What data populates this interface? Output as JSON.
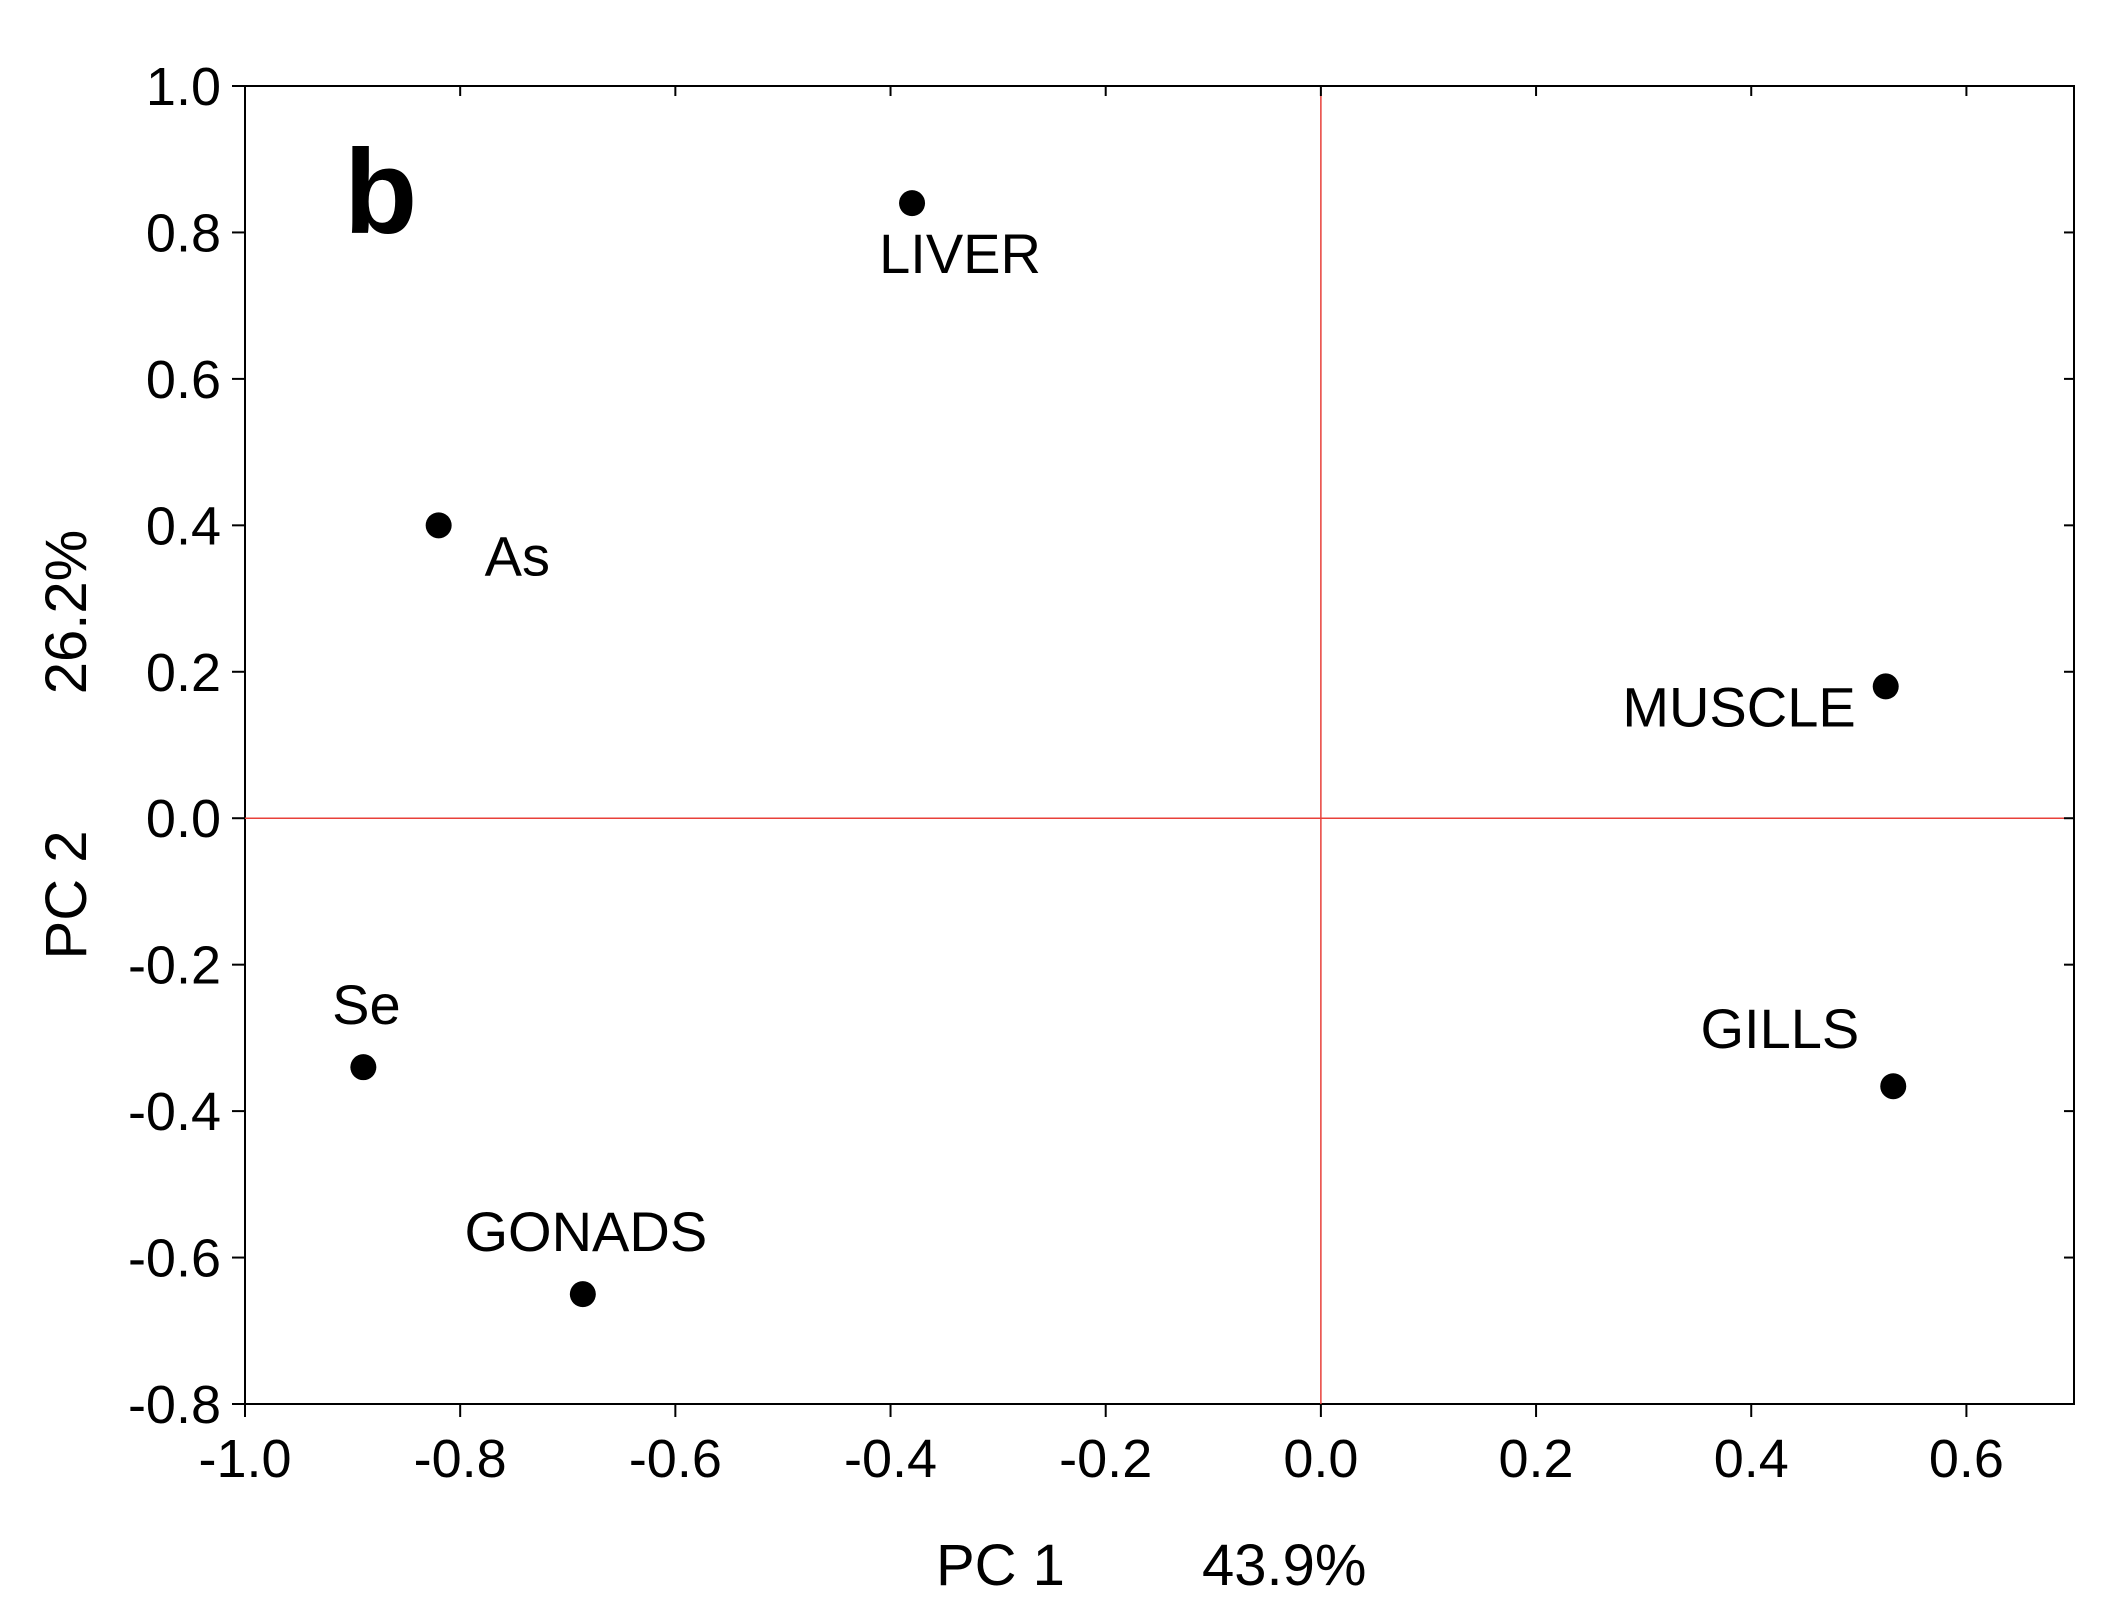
{
  "chart_data": {
    "type": "scatter",
    "panel_label": "b",
    "xlabel": "PC 1",
    "xlabel_variance": "43.9%",
    "ylabel": "PC 2",
    "ylabel_variance": "26.2%",
    "xlim": [
      -1.0,
      0.7
    ],
    "ylim": [
      -0.8,
      1.0
    ],
    "x_ticks": [
      -1.0,
      -0.8,
      -0.6,
      -0.4,
      -0.2,
      0.0,
      0.2,
      0.4,
      0.6
    ],
    "x_tick_labels": [
      "-1.0",
      "-0.8",
      "-0.6",
      "-0.4",
      "-0.2",
      "0.0",
      "0.2",
      "0.4",
      "0.6"
    ],
    "y_ticks": [
      1.0,
      0.8,
      0.6,
      0.4,
      0.2,
      0.0,
      -0.2,
      -0.4,
      -0.6,
      -0.8
    ],
    "y_tick_labels": [
      "1.0",
      "0.8",
      "0.6",
      "0.4",
      "0.2",
      "0.0",
      "-0.2",
      "-0.4",
      "-0.6",
      "-0.8"
    ],
    "reference_lines": {
      "x": 0.0,
      "y": 0.0,
      "color": "#e8403a"
    },
    "grid": false,
    "points": [
      {
        "label": "LIVER",
        "x": -0.38,
        "y": 0.84,
        "label_position": "below-right"
      },
      {
        "label": "As",
        "x": -0.82,
        "y": 0.4,
        "label_position": "below-right"
      },
      {
        "label": "MUSCLE",
        "x": 0.525,
        "y": 0.18,
        "label_position": "below-left"
      },
      {
        "label": "Se",
        "x": -0.89,
        "y": -0.34,
        "label_position": "above"
      },
      {
        "label": "GILLS",
        "x": 0.532,
        "y": -0.366,
        "label_position": "above-left"
      },
      {
        "label": "GONADS",
        "x": -0.686,
        "y": -0.65,
        "label_position": "above"
      }
    ],
    "marker_color": "#000000"
  }
}
